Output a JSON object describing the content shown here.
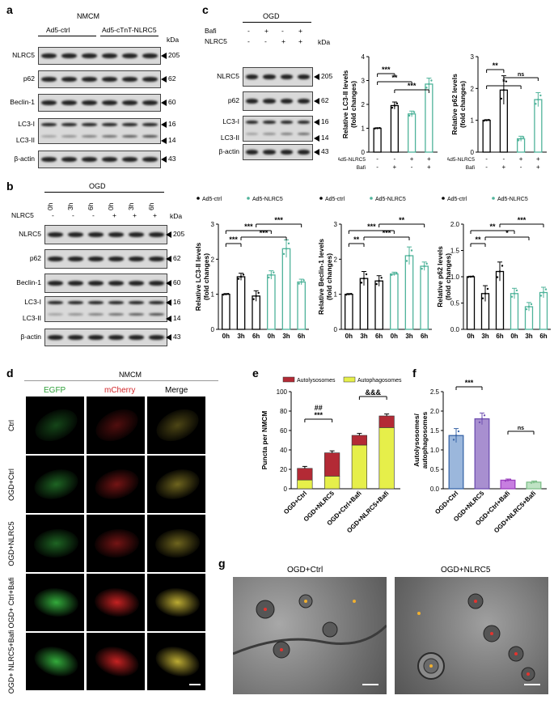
{
  "panels": {
    "a": {
      "letter": "a",
      "cell": "NMCM",
      "groups": [
        "Ad5-ctrl",
        "Ad5-cTnT-NLRC5"
      ],
      "kda_label": "kDa",
      "rows": [
        {
          "label": "NLRC5",
          "kda": "205"
        },
        {
          "label": "p62",
          "kda": "62"
        },
        {
          "label": "Beclin-1",
          "kda": "60"
        },
        {
          "label": "LC3-I",
          "kda": "16"
        },
        {
          "label": "LC3-II",
          "kda": "14"
        },
        {
          "label": "β-actin",
          "kda": "43"
        }
      ]
    },
    "b": {
      "letter": "b",
      "condition": "OGD",
      "time_labels": [
        "0h",
        "3h",
        "6h",
        "0h",
        "3h",
        "6h"
      ],
      "nlrc5_label": "NLRC5",
      "nlrc5_signs": [
        "-",
        "-",
        "-",
        "+",
        "+",
        "+"
      ],
      "kda_label": "kDa",
      "rows": [
        {
          "label": "NLRC5",
          "kda": "205"
        },
        {
          "label": "p62",
          "kda": "62"
        },
        {
          "label": "Beclin-1",
          "kda": "60"
        },
        {
          "label": "LC3-I",
          "kda": "16"
        },
        {
          "label": "LC3-II",
          "kda": "14"
        },
        {
          "label": "β-actin",
          "kda": "43"
        }
      ]
    },
    "c": {
      "letter": "c",
      "condition": "OGD",
      "bafi_label": "Bafi",
      "bafi_signs": [
        "-",
        "+",
        "-",
        "+"
      ],
      "nlrc5_label": "NLRC5",
      "nlrc5_signs": [
        "-",
        "-",
        "+",
        "+"
      ],
      "kda_label": "kDa",
      "rows": [
        {
          "label": "NLRC5",
          "kda": "205"
        },
        {
          "label": "p62",
          "kda": "62"
        },
        {
          "label": "LC3-I",
          "kda": "16"
        },
        {
          "label": "LC3-II",
          "kda": "14"
        },
        {
          "label": "β-actin",
          "kda": "43"
        }
      ]
    },
    "d": {
      "letter": "d",
      "cell": "NMCM",
      "channels": [
        "EGFP",
        "mCherry",
        "Merge"
      ],
      "rows": [
        "Ctrl",
        "OGD+Ctrl",
        "OGD+NLRC5",
        "OGD+ Ctrl+Bafi",
        "OGD+ NLRC5+Bafi"
      ]
    },
    "e": {
      "letter": "e"
    },
    "f": {
      "letter": "f"
    },
    "g": {
      "letter": "g",
      "titles": [
        "OGD+Ctrl",
        "OGD+NLRC5"
      ]
    }
  },
  "chart_data": [
    {
      "id": "c_lc3",
      "type": "bar",
      "ylabel": "Relative LC3-II levels (fold changes)",
      "ylim": [
        0,
        4
      ],
      "yticks": [
        0,
        1,
        2,
        3,
        4
      ],
      "xrow_labels": [
        "Ad5-NLRC5",
        "Bafi"
      ],
      "xrow_signs": [
        [
          "-",
          "-",
          "+",
          "+"
        ],
        [
          "-",
          "+",
          "-",
          "+"
        ]
      ],
      "values": [
        1.0,
        1.95,
        1.6,
        2.85
      ],
      "errors": [
        0.02,
        0.15,
        0.12,
        0.25
      ],
      "colors": [
        "#000000",
        "#000000",
        "#4fb39a",
        "#4fb39a"
      ],
      "significance": [
        {
          "from": 0,
          "to": 1,
          "label": "***"
        },
        {
          "from": 0,
          "to": 2,
          "label": "**"
        },
        {
          "from": 1,
          "to": 3,
          "label": "***"
        }
      ]
    },
    {
      "id": "c_p62",
      "type": "bar",
      "ylabel": "Relative p62 levels (fold changes)",
      "ylim": [
        0,
        3
      ],
      "yticks": [
        0,
        1,
        2,
        3
      ],
      "xrow_labels": [
        "Ad5-NLRC5",
        "Bafi"
      ],
      "xrow_signs": [
        [
          "-",
          "-",
          "+",
          "+"
        ],
        [
          "-",
          "+",
          "-",
          "+"
        ]
      ],
      "values": [
        1.0,
        1.95,
        0.42,
        1.65
      ],
      "errors": [
        0.02,
        0.45,
        0.08,
        0.22
      ],
      "colors": [
        "#000000",
        "#000000",
        "#4fb39a",
        "#4fb39a"
      ],
      "significance": [
        {
          "from": 0,
          "to": 1,
          "label": "**"
        },
        {
          "from": 1,
          "to": 3,
          "label": "ns"
        },
        {
          "from": 0,
          "to": 2,
          "label": "*"
        }
      ]
    },
    {
      "id": "b_lc3",
      "type": "bar",
      "ylabel": "Relative LC3-II levels (fold changes)",
      "ylim": [
        0,
        3
      ],
      "yticks": [
        0,
        1,
        2,
        3
      ],
      "categories": [
        "0h",
        "3h",
        "6h",
        "0h",
        "3h",
        "6h"
      ],
      "legend": [
        "Ad5-ctrl",
        "Ad5-NLRC5"
      ],
      "values": [
        1.0,
        1.5,
        0.95,
        1.55,
        2.3,
        1.35
      ],
      "errors": [
        0.02,
        0.1,
        0.15,
        0.12,
        0.25,
        0.08
      ],
      "colors": [
        "#000000",
        "#000000",
        "#000000",
        "#4fb39a",
        "#4fb39a",
        "#4fb39a"
      ],
      "significance": [
        {
          "from": 0,
          "to": 1,
          "label": "***"
        },
        {
          "from": 1,
          "to": 4,
          "label": "***"
        },
        {
          "from": 0,
          "to": 3,
          "label": "***"
        },
        {
          "from": 2,
          "to": 5,
          "label": "***"
        }
      ]
    },
    {
      "id": "b_beclin",
      "type": "bar",
      "ylabel": "Relative Beclin-1 levels (fold changes)",
      "ylim": [
        0,
        3
      ],
      "yticks": [
        0,
        1,
        2,
        3
      ],
      "categories": [
        "0h",
        "3h",
        "6h",
        "0h",
        "3h",
        "6h"
      ],
      "legend": [
        "Ad5-ctrl",
        "Ad5-NLRC5"
      ],
      "values": [
        1.0,
        1.45,
        1.38,
        1.58,
        2.1,
        1.8
      ],
      "errors": [
        0.02,
        0.2,
        0.15,
        0.05,
        0.25,
        0.12
      ],
      "colors": [
        "#000000",
        "#000000",
        "#000000",
        "#4fb39a",
        "#4fb39a",
        "#4fb39a"
      ],
      "significance": [
        {
          "from": 0,
          "to": 1,
          "label": "**"
        },
        {
          "from": 1,
          "to": 4,
          "label": "***"
        },
        {
          "from": 0,
          "to": 3,
          "label": "***"
        },
        {
          "from": 2,
          "to": 5,
          "label": "**"
        }
      ]
    },
    {
      "id": "b_p62",
      "type": "bar",
      "ylabel": "Relative p62 levels (fold changes)",
      "ylim": [
        0,
        2.0
      ],
      "yticks": [
        0.0,
        0.5,
        1.0,
        1.5,
        2.0
      ],
      "categories": [
        "0h",
        "3h",
        "6h",
        "0h",
        "3h",
        "6h"
      ],
      "legend": [
        "Ad5-ctrl",
        "Ad5-NLRC5"
      ],
      "values": [
        1.0,
        0.68,
        1.1,
        0.68,
        0.43,
        0.7
      ],
      "errors": [
        0.01,
        0.15,
        0.18,
        0.1,
        0.08,
        0.1
      ],
      "colors": [
        "#000000",
        "#000000",
        "#000000",
        "#4fb39a",
        "#4fb39a",
        "#4fb39a"
      ],
      "significance": [
        {
          "from": 0,
          "to": 1,
          "label": "**"
        },
        {
          "from": 1,
          "to": 4,
          "label": "*"
        },
        {
          "from": 0,
          "to": 3,
          "label": "**"
        },
        {
          "from": 2,
          "to": 5,
          "label": "***"
        }
      ]
    },
    {
      "id": "e_puncta",
      "type": "bar",
      "stacked": true,
      "ylabel": "Puncta per NMCM",
      "ylim": [
        0,
        100
      ],
      "yticks": [
        0,
        20,
        40,
        60,
        80,
        100
      ],
      "categories": [
        "OGD+Ctrl",
        "OGD+NLRC5",
        "OGD+Ctrl+Bafi",
        "OGD+NLRC5+Bafi"
      ],
      "series": [
        {
          "name": "Autophagosomes",
          "color": "#e6ef4a",
          "values": [
            9,
            13,
            45,
            63
          ]
        },
        {
          "name": "Autolysosomes",
          "color": "#b32a35",
          "values": [
            12,
            24,
            10,
            12
          ]
        }
      ],
      "significance": [
        {
          "from": 0,
          "to": 1,
          "label": "***",
          "top": "##"
        },
        {
          "from": 2,
          "to": 3,
          "label": "&&&"
        }
      ]
    },
    {
      "id": "f_ratio",
      "type": "bar",
      "ylabel": "Autolysosomes/ autophagosomes",
      "ylim": [
        0,
        2.5
      ],
      "yticks": [
        0.0,
        0.5,
        1.0,
        1.5,
        2.0,
        2.5
      ],
      "categories": [
        "OGD+Ctrl",
        "OGD+NLRC5",
        "OGD+Ctrl+Bafi",
        "OGD+NLRC5+Bafi"
      ],
      "values": [
        1.37,
        1.8,
        0.22,
        0.17
      ],
      "errors": [
        0.18,
        0.15,
        0.03,
        0.03
      ],
      "colors": [
        "#9bb7dc",
        "#a88fd0",
        "#c77ee0",
        "#bfe3c4"
      ],
      "edge_colors": [
        "#3a66a8",
        "#6e4fb0",
        "#9a3fbe",
        "#7fbf8a"
      ],
      "significance": [
        {
          "from": 0,
          "to": 1,
          "label": "***"
        },
        {
          "from": 2,
          "to": 3,
          "label": "ns"
        }
      ]
    }
  ]
}
